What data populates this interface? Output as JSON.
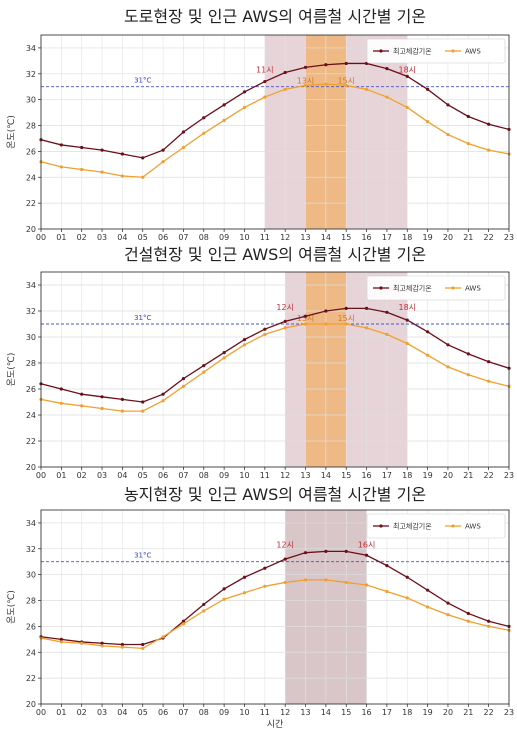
{
  "chart_data": [
    {
      "type": "line",
      "title": "도로현장 및 인근 AWS의 여름철 시간별 기온",
      "ylabel": "온도(℃)",
      "xlabel": "",
      "categories": [
        "00",
        "01",
        "02",
        "03",
        "04",
        "05",
        "06",
        "07",
        "08",
        "09",
        "10",
        "11",
        "12",
        "13",
        "14",
        "15",
        "16",
        "17",
        "18",
        "19",
        "20",
        "21",
        "22",
        "23"
      ],
      "ylim": [
        20,
        35
      ],
      "yticks": [
        20,
        22,
        24,
        26,
        28,
        30,
        32,
        34
      ],
      "grid": true,
      "legend_position": "top-right",
      "reference_line": {
        "value": 31,
        "label": "31°C"
      },
      "series": [
        {
          "name": "최고체감기온",
          "color": "#6b0f1a",
          "values": [
            26.9,
            26.5,
            26.3,
            26.1,
            25.8,
            25.5,
            26.1,
            27.5,
            28.6,
            29.6,
            30.6,
            31.4,
            32.1,
            32.5,
            32.7,
            32.8,
            32.8,
            32.4,
            31.8,
            30.8,
            29.6,
            28.7,
            28.1,
            27.7
          ]
        },
        {
          "name": "AWS",
          "color": "#f0a030",
          "values": [
            25.2,
            24.8,
            24.6,
            24.4,
            24.1,
            24.0,
            25.2,
            26.3,
            27.4,
            28.4,
            29.4,
            30.2,
            30.8,
            31.1,
            31.2,
            31.1,
            30.8,
            30.2,
            29.4,
            28.3,
            27.3,
            26.6,
            26.1,
            25.8
          ]
        }
      ],
      "highlights": [
        {
          "from": 11,
          "to": 18,
          "color": "#c9a0a8",
          "label_start": "11시",
          "label_end": "18시"
        },
        {
          "from": 13,
          "to": 15,
          "color": "#f2b06a",
          "label_start": "13시",
          "label_end": "15시"
        }
      ]
    },
    {
      "type": "line",
      "title": "건설현장 및 인근 AWS의 여름철 시간별 기온",
      "ylabel": "온도(℃)",
      "xlabel": "",
      "categories": [
        "00",
        "01",
        "02",
        "03",
        "04",
        "05",
        "06",
        "07",
        "08",
        "09",
        "10",
        "11",
        "12",
        "13",
        "14",
        "15",
        "16",
        "17",
        "18",
        "19",
        "20",
        "21",
        "22",
        "23"
      ],
      "ylim": [
        20,
        35
      ],
      "yticks": [
        20,
        22,
        24,
        26,
        28,
        30,
        32,
        34
      ],
      "grid": true,
      "legend_position": "top-right",
      "reference_line": {
        "value": 31,
        "label": "31°C"
      },
      "series": [
        {
          "name": "최고체감기온",
          "color": "#6b0f1a",
          "values": [
            26.4,
            26.0,
            25.6,
            25.4,
            25.2,
            25.0,
            25.6,
            26.8,
            27.8,
            28.8,
            29.8,
            30.6,
            31.2,
            31.6,
            32.0,
            32.2,
            32.2,
            31.9,
            31.3,
            30.4,
            29.4,
            28.7,
            28.1,
            27.6
          ]
        },
        {
          "name": "AWS",
          "color": "#f0a030",
          "values": [
            25.2,
            24.9,
            24.7,
            24.5,
            24.3,
            24.3,
            25.1,
            26.2,
            27.3,
            28.4,
            29.4,
            30.2,
            30.7,
            31.0,
            31.0,
            31.0,
            30.7,
            30.2,
            29.5,
            28.6,
            27.7,
            27.1,
            26.6,
            26.2
          ]
        }
      ],
      "highlights": [
        {
          "from": 12,
          "to": 18,
          "color": "#c9a0a8",
          "label_start": "12시",
          "label_end": "18시"
        },
        {
          "from": 13,
          "to": 15,
          "color": "#f2b06a",
          "label_start": "13시",
          "label_end": "15시"
        }
      ]
    },
    {
      "type": "line",
      "title": "농지현장 및 인근 AWS의 여름철 시간별 기온",
      "ylabel": "온도(℃)",
      "xlabel": "시간",
      "categories": [
        "00",
        "01",
        "02",
        "03",
        "04",
        "05",
        "06",
        "07",
        "08",
        "09",
        "10",
        "11",
        "12",
        "13",
        "14",
        "15",
        "16",
        "17",
        "18",
        "19",
        "20",
        "21",
        "22",
        "23"
      ],
      "ylim": [
        20,
        35
      ],
      "yticks": [
        20,
        22,
        24,
        26,
        28,
        30,
        32,
        34
      ],
      "grid": true,
      "legend_position": "top-right",
      "reference_line": {
        "value": 31,
        "label": "31°C"
      },
      "series": [
        {
          "name": "최고체감기온",
          "color": "#6b0f1a",
          "values": [
            25.2,
            25.0,
            24.8,
            24.7,
            24.6,
            24.6,
            25.1,
            26.4,
            27.7,
            28.9,
            29.8,
            30.5,
            31.2,
            31.7,
            31.8,
            31.8,
            31.5,
            30.7,
            29.8,
            28.8,
            27.8,
            27.0,
            26.4,
            26.0
          ]
        },
        {
          "name": "AWS",
          "color": "#f0a030",
          "values": [
            25.1,
            24.8,
            24.7,
            24.5,
            24.4,
            24.3,
            25.2,
            26.2,
            27.2,
            28.1,
            28.6,
            29.1,
            29.4,
            29.6,
            29.6,
            29.4,
            29.2,
            28.7,
            28.2,
            27.5,
            26.9,
            26.4,
            26.0,
            25.7
          ]
        }
      ],
      "highlights": [
        {
          "from": 12,
          "to": 16,
          "color": "#a88088",
          "label_start": "12시",
          "label_end": "16시"
        }
      ]
    }
  ]
}
